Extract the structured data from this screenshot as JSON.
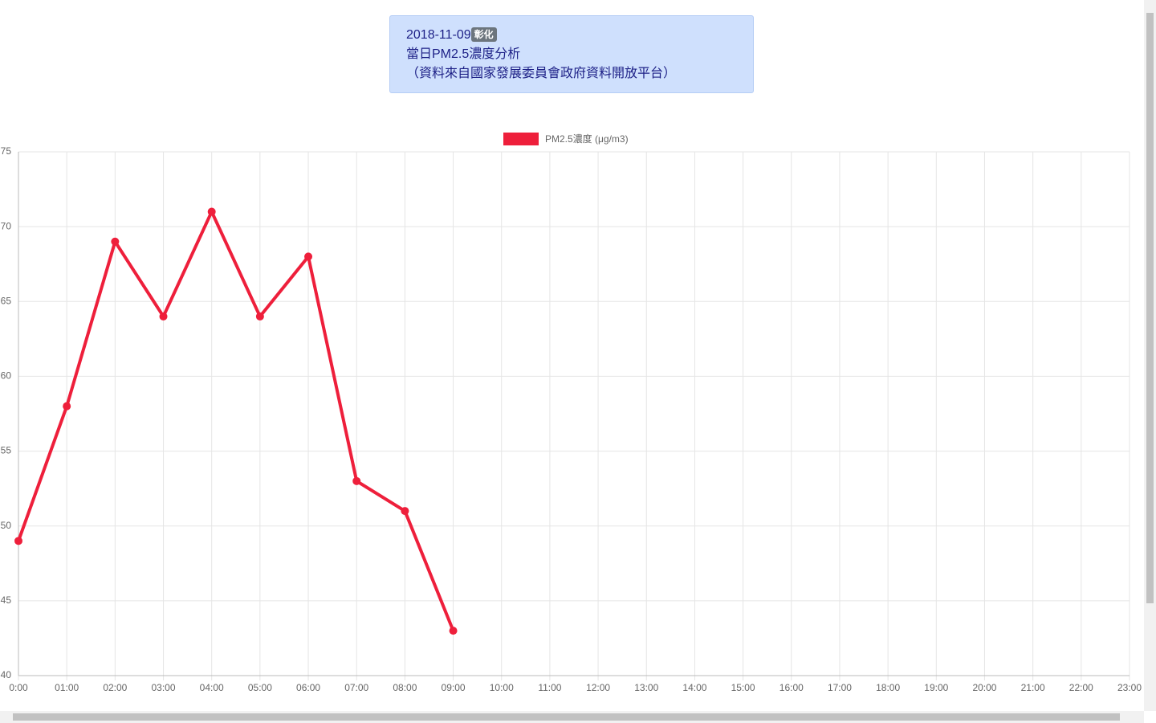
{
  "header": {
    "date": "2018-11-09",
    "badge": "彰化",
    "title": "當日PM2.5濃度分析",
    "source": "（資料來自國家發展委員會政府資料開放平台）"
  },
  "chart_data": {
    "type": "line",
    "categories": [
      "0:00",
      "01:00",
      "02:00",
      "03:00",
      "04:00",
      "05:00",
      "06:00",
      "07:00",
      "08:00",
      "09:00",
      "10:00",
      "11:00",
      "12:00",
      "13:00",
      "14:00",
      "15:00",
      "16:00",
      "17:00",
      "18:00",
      "19:00",
      "20:00",
      "21:00",
      "22:00",
      "23:00"
    ],
    "series": [
      {
        "name": "PM2.5濃度 (μg/m3)",
        "color": "#ee1f3b",
        "values": [
          49,
          58,
          69,
          64,
          71,
          64,
          68,
          53,
          51,
          43,
          null,
          null,
          null,
          null,
          null,
          null,
          null,
          null,
          null,
          null,
          null,
          null,
          null,
          null
        ]
      }
    ],
    "ylim": [
      40,
      75
    ],
    "yticks": [
      40,
      45,
      50,
      55,
      60,
      65,
      70,
      75
    ],
    "grid": true,
    "legend": "top"
  }
}
